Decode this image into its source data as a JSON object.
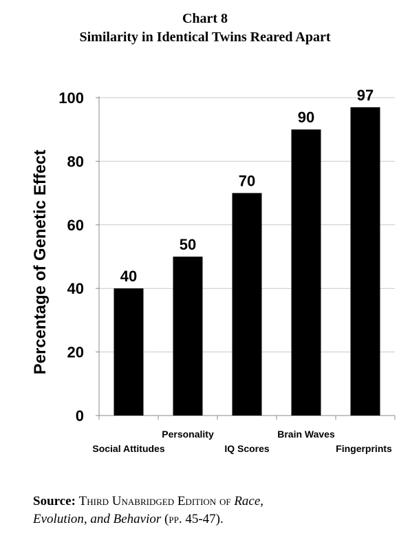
{
  "title": "Chart 8",
  "subtitle": "Similarity in Identical Twins Reared Apart",
  "source": {
    "label": "Source:",
    "text_sc": "Third Unabridged Edition of",
    "italic_1": "Race,",
    "italic_2": "Evolution, and Behavior",
    "pp_open": "(",
    "pp_sc": "pp.",
    "pages": "45-47).",
    "colors": {
      "text": "#000000"
    }
  },
  "chart_data": {
    "type": "bar",
    "title": "Similarity in Identical Twins Reared Apart",
    "ylabel": "Percentage of Genetic Effect",
    "xlabel": "",
    "categories": [
      "Social Attitudes",
      "Personality",
      "IQ Scores",
      "Brain Waves",
      "Fingerprints"
    ],
    "values": [
      40,
      50,
      70,
      90,
      97
    ],
    "value_labels": [
      "40",
      "50",
      "70",
      "90",
      "97"
    ],
    "ylim": [
      0,
      100
    ],
    "yticks": [
      "0",
      "20",
      "40",
      "60",
      "80",
      "100"
    ],
    "grid": true,
    "bar_color": "#000000",
    "grid_color": "#c8c8c8",
    "legend": "none"
  }
}
